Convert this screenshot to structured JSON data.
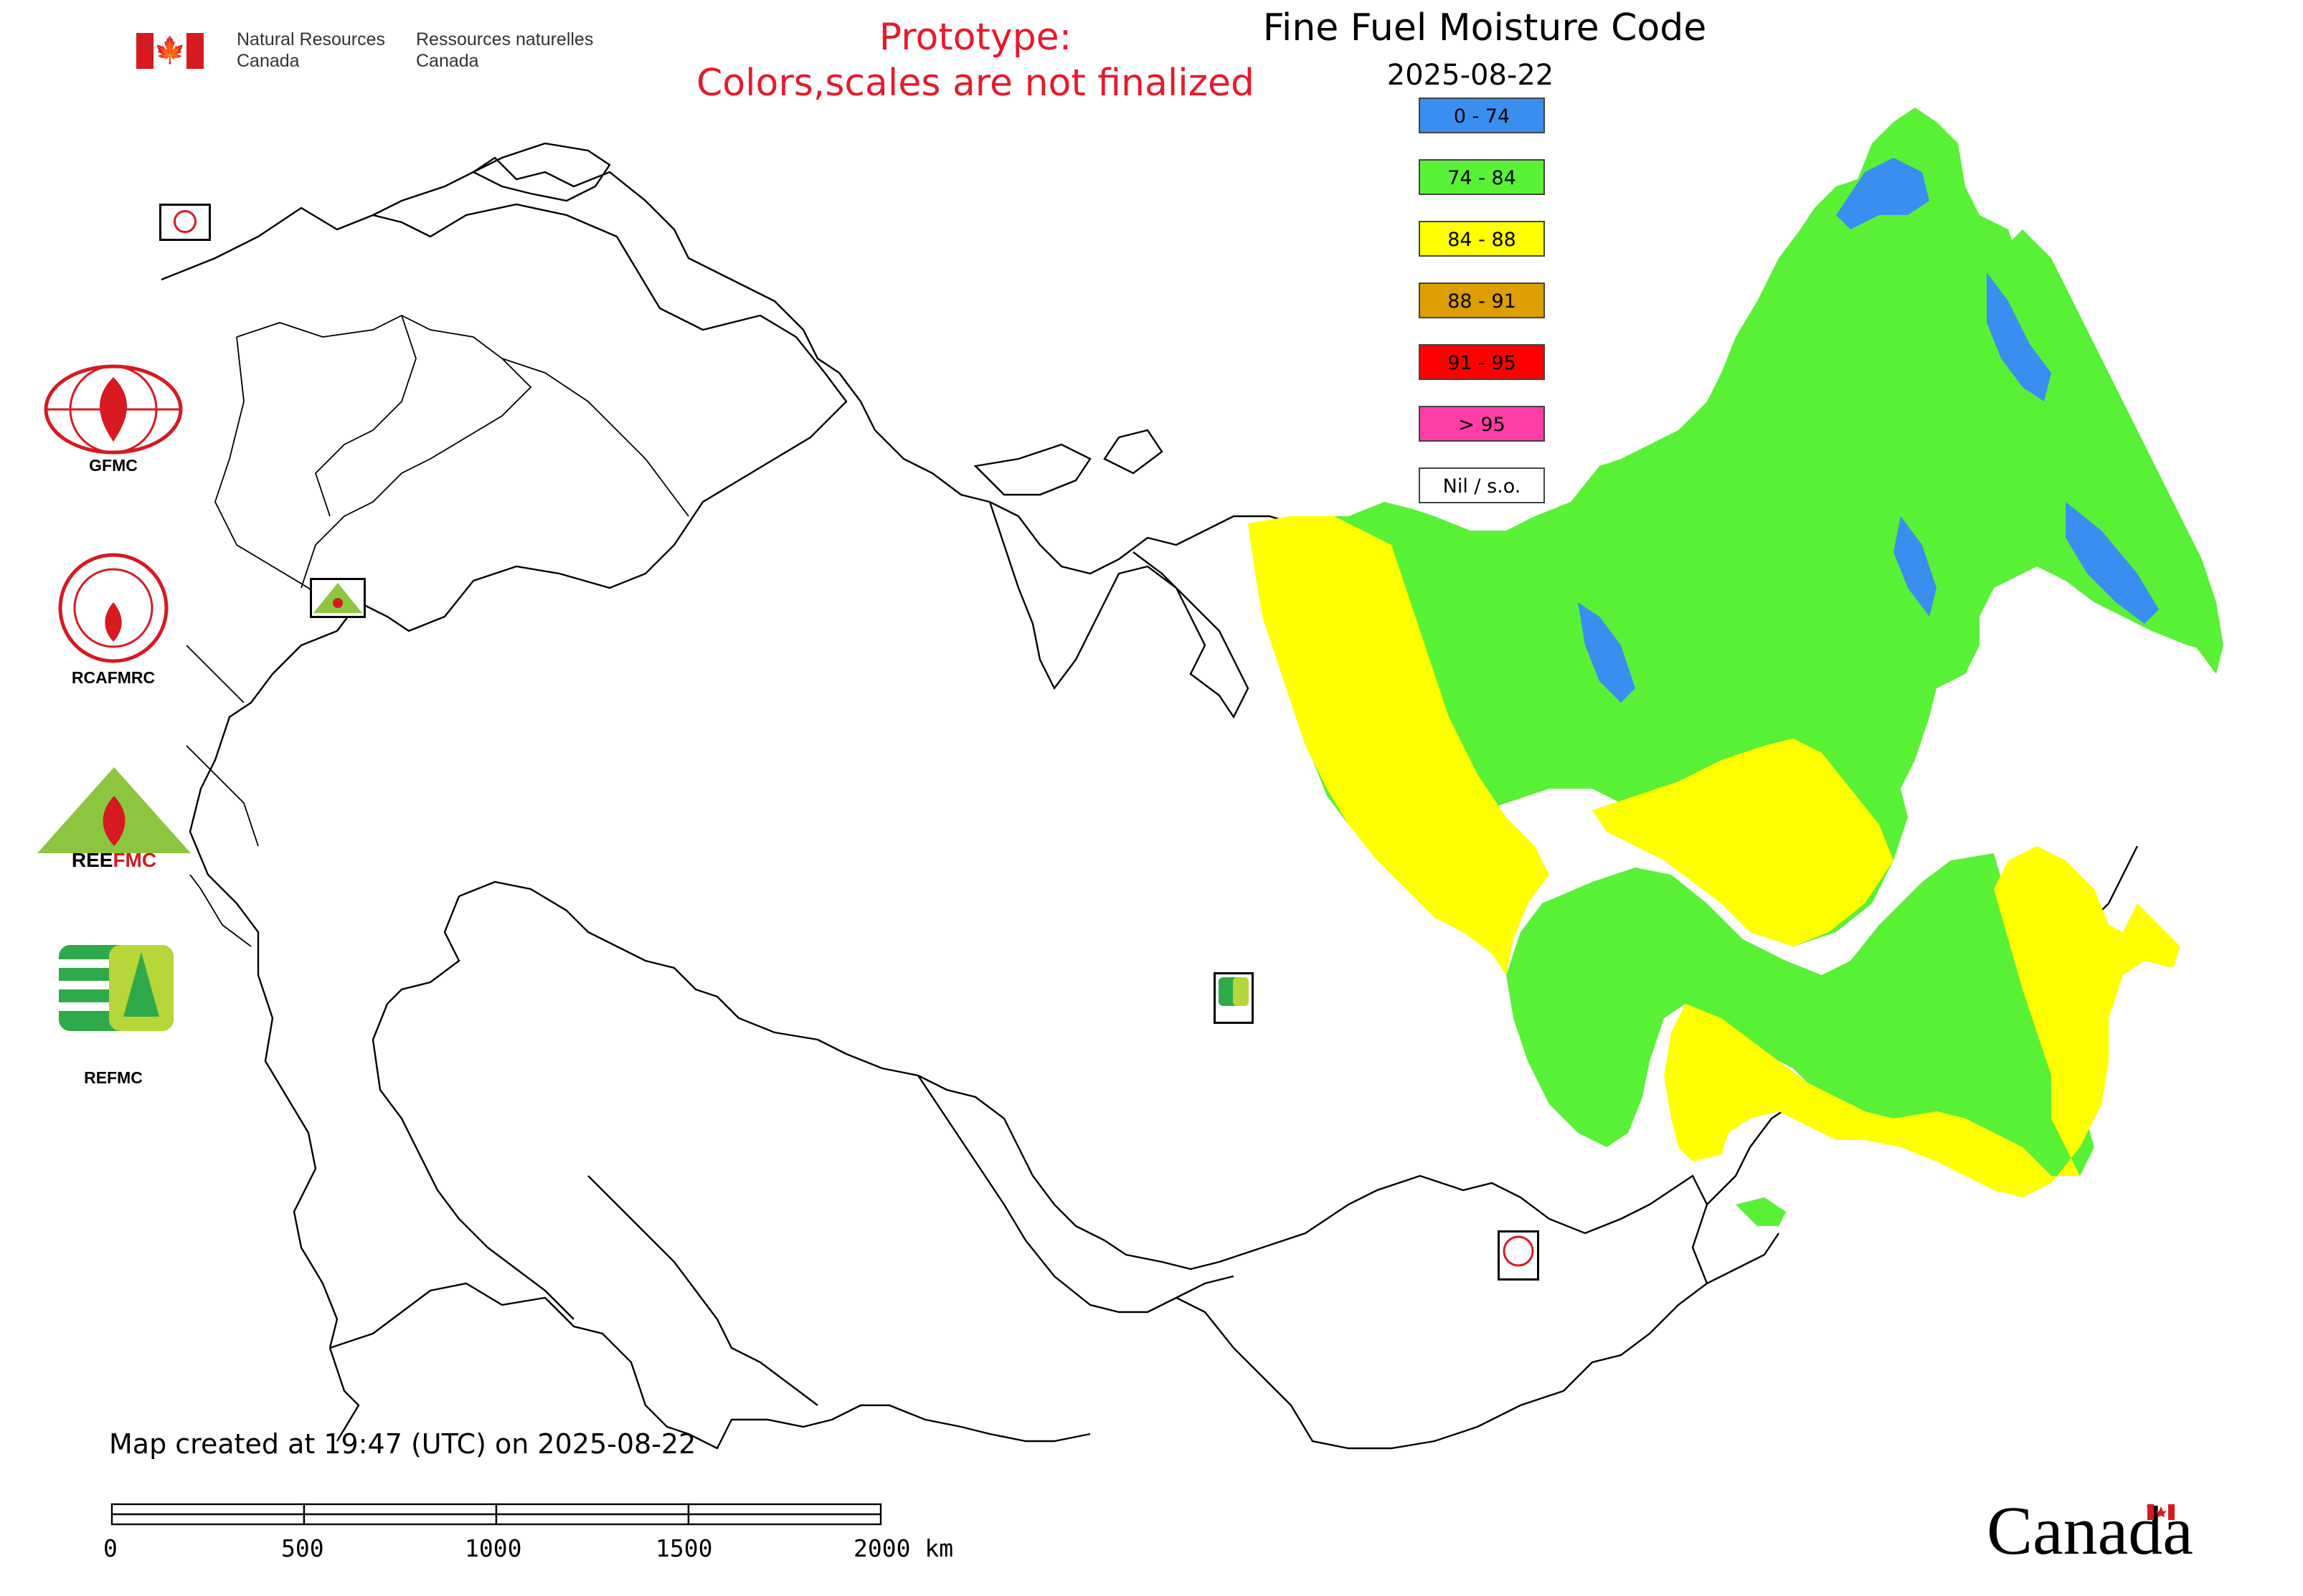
{
  "header": {
    "agency_en_line1": "Natural Resources",
    "agency_en_line2": "Canada",
    "agency_fr_line1": "Ressources naturelles",
    "agency_fr_line2": "Canada",
    "prototype_line1": "Prototype:",
    "prototype_line2": "Colors,scales are not finalized",
    "title": "Fine Fuel Moisture Code",
    "date": "2025-08-22"
  },
  "legend": [
    {
      "label": "0 - 74",
      "color": "#3a8ef0"
    },
    {
      "label": "74 - 84",
      "color": "#59f136"
    },
    {
      "label": "84 - 88",
      "color": "#ffff00"
    },
    {
      "label": "88 - 91",
      "color": "#dc9e00"
    },
    {
      "label": "91 - 95",
      "color": "#ff0000"
    },
    {
      "label": "> 95",
      "color": "#ff3da6"
    },
    {
      "label": "Nil / s.o.",
      "color": "#ffffff"
    }
  ],
  "logos": {
    "gfmc": "GFMC",
    "rcafmrc": "RCAFMRC",
    "reefmc": "REEFMC",
    "refmc": "REFMC",
    "rcafmrc_emblem": "RCAFMRC",
    "reefmc_emblem_text": "REE",
    "reefmc_emblem_text2": "FMC"
  },
  "footer": {
    "created": "Map created at 19:47 (UTC) on 2025-08-22",
    "scale_labels": [
      "0",
      "500",
      "1000",
      "1500",
      "2000 km"
    ],
    "wordmark": "Canada"
  },
  "colors": {
    "boundary": "#000000",
    "blue": "#3a8ef0",
    "green": "#59f136",
    "yellow": "#ffff00"
  }
}
